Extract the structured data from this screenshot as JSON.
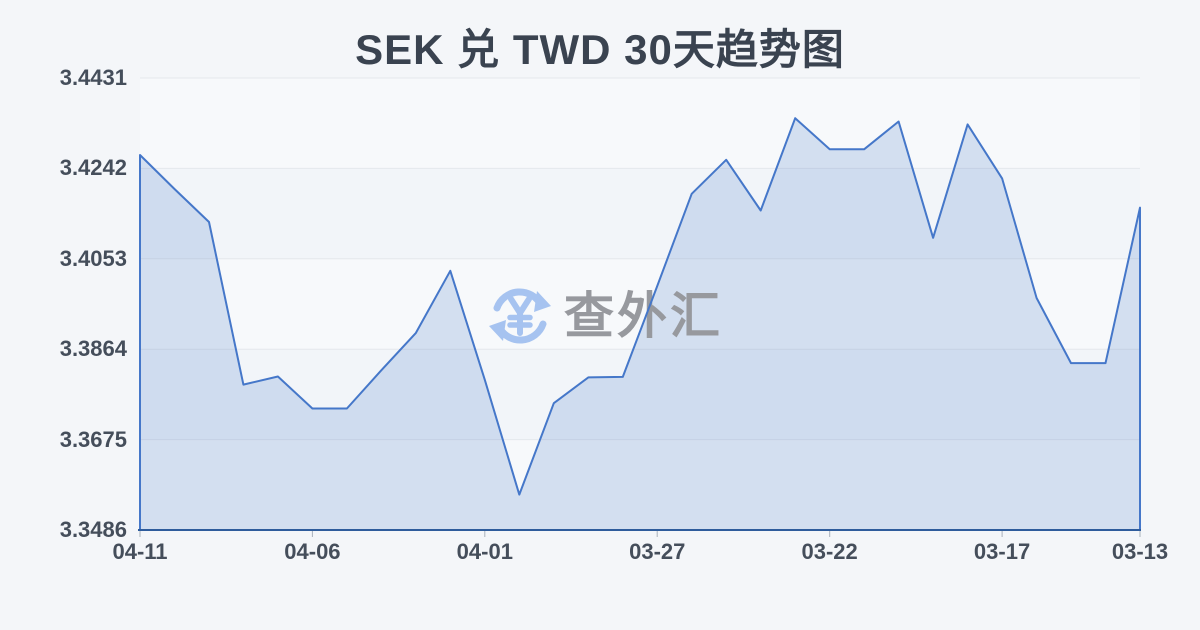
{
  "page": {
    "background": "#f4f6f9"
  },
  "watermark": {
    "text": "查外汇",
    "icon": "currency-exchange-refresh-icon",
    "icon_color": "#a6c3f0",
    "text_color": "#97999e"
  },
  "chart_data": {
    "type": "area",
    "title": "SEK 兑 TWD 30天趋势图",
    "xlabel": "",
    "ylabel": "",
    "legend": "none",
    "grid": true,
    "x": [
      "04-11",
      "04-10",
      "04-09",
      "04-08",
      "04-07",
      "04-06",
      "04-05",
      "04-04",
      "04-03",
      "04-02",
      "04-01",
      "03-31",
      "03-30",
      "03-29",
      "03-28",
      "03-27",
      "03-26",
      "03-25",
      "03-24",
      "03-23",
      "03-22",
      "03-21",
      "03-20",
      "03-19",
      "03-18",
      "03-17",
      "03-16",
      "03-15",
      "03-14",
      "03-13"
    ],
    "values": [
      3.427,
      3.4199,
      3.413,
      3.379,
      3.3807,
      3.374,
      3.374,
      3.382,
      3.3898,
      3.4028,
      3.38,
      3.356,
      3.3751,
      3.3805,
      3.3806,
      3.3996,
      3.4189,
      3.426,
      3.4154,
      3.4347,
      3.4282,
      3.4282,
      3.434,
      3.4097,
      3.4334,
      3.4221,
      3.3971,
      3.3835,
      3.3835,
      3.416
    ],
    "x_tick_labels": [
      "04-11",
      "04-06",
      "04-01",
      "03-27",
      "03-22",
      "03-17",
      "03-13"
    ],
    "x_tick_indices": [
      0,
      5,
      10,
      15,
      20,
      25,
      29
    ],
    "y_ticks": [
      "3.4431",
      "3.4242",
      "3.4053",
      "3.3864",
      "3.3675",
      "3.3486"
    ],
    "ylim": [
      3.3486,
      3.4431
    ],
    "colors": {
      "title": "#3a4350",
      "axis_label": "#454e5b",
      "line": "#4577c9",
      "fill": "rgba(69,119,201,0.20)",
      "axis_line": "#2e5c9c",
      "grid_line": "#e5e8ec",
      "tick": "#a9b1bb",
      "band_a": "#f7f9fb",
      "band_b": "#f2f5f9"
    }
  }
}
